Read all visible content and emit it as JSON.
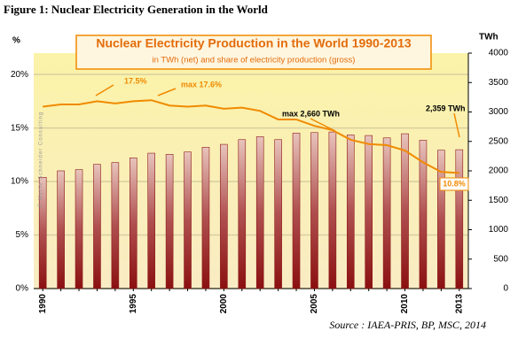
{
  "caption": "Figure 1: Nuclear Electricity Generation in the World",
  "chart_data": {
    "type": "bar-line",
    "title": "Nuclear Electricity Production in the World 1990-2013",
    "subtitle": "in TWh (net) and share of electricity production (gross)",
    "y_label": "%",
    "y2_label": "TWh",
    "watermark": "© Mycle Schneider Consulting",
    "source": "Source : IAEA-PRIS, BP, MSC, 2014",
    "categories": [
      "1990",
      null,
      null,
      null,
      null,
      "1995",
      null,
      null,
      null,
      null,
      "2000",
      null,
      null,
      null,
      null,
      "2005",
      null,
      null,
      null,
      null,
      "2010",
      null,
      null,
      "2013"
    ],
    "series": [
      {
        "name": "TWh",
        "type": "bar",
        "axis": "y2",
        "color": "#8b1a1a",
        "values": [
          1890,
          2000,
          2020,
          2110,
          2140,
          2220,
          2300,
          2280,
          2320,
          2400,
          2450,
          2530,
          2580,
          2530,
          2640,
          2650,
          2660,
          2610,
          2600,
          2560,
          2630,
          2520,
          2350,
          2359
        ]
      },
      {
        "name": "share",
        "type": "line",
        "axis": "y",
        "color": "#f08a00",
        "values": [
          17.0,
          17.2,
          17.2,
          17.5,
          17.3,
          17.5,
          17.6,
          17.1,
          17.0,
          17.1,
          16.8,
          16.9,
          16.6,
          15.8,
          15.8,
          15.2,
          14.8,
          13.9,
          13.5,
          13.4,
          12.9,
          11.8,
          10.9,
          10.8
        ]
      }
    ],
    "annotations": [
      "17.5%",
      "max 17.6%",
      "max 2,660 TWh",
      "2,359 TWh",
      "10.8%"
    ],
    "ylim": [
      0,
      22
    ],
    "yticks": [
      {
        "value": 0,
        "label": "0%"
      },
      {
        "value": 5,
        "label": "5%"
      },
      {
        "value": 10,
        "label": "10%"
      },
      {
        "value": 15,
        "label": "15%"
      },
      {
        "value": 20,
        "label": "20%"
      }
    ],
    "y2lim": [
      0,
      4000
    ],
    "y2ticks": [
      0,
      500,
      1000,
      1500,
      2000,
      2500,
      3000,
      3500,
      4000
    ],
    "grid": true
  }
}
